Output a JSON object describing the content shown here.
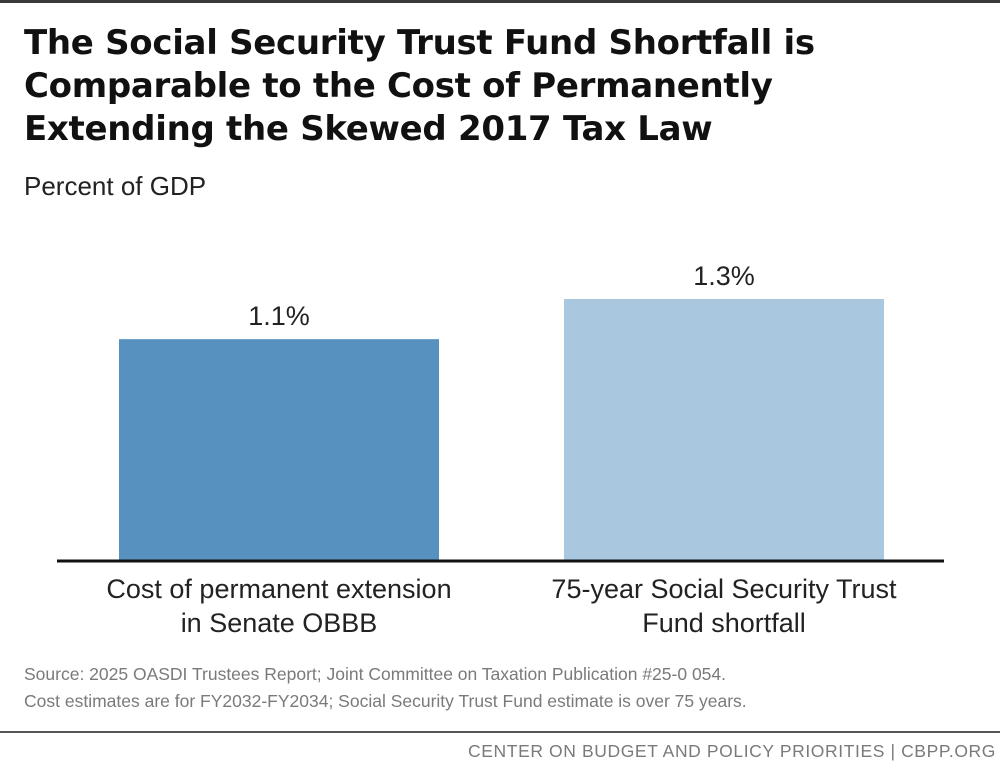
{
  "chart_data": {
    "type": "bar",
    "title": "The Social Security Trust Fund Shortfall is Comparable to the Cost of Permanently Extending the Skewed 2017 Tax Law",
    "subtitle": "Percent of GDP",
    "categories": [
      [
        "Cost of permanent extension",
        "in Senate OBBB"
      ],
      [
        "75-year Social Security Trust",
        "Fund shortfall"
      ]
    ],
    "values": [
      1.1,
      1.3
    ],
    "data_labels": [
      "1.1%",
      "1.3%"
    ],
    "colors": [
      "#5691c0",
      "#a9c8e0"
    ],
    "ylim": [
      0,
      1.3
    ],
    "grid": false,
    "legend": "none"
  },
  "source": [
    "Source: 2025 OASDI Trustees Report; Joint Committee on Taxation Publication #25-0 054.",
    "Cost estimates are for FY2032-FY2034; Social Security Trust Fund estimate is over 75 years."
  ],
  "footer": "CENTER ON BUDGET AND POLICY PRIORITIES | CBPP.ORG"
}
